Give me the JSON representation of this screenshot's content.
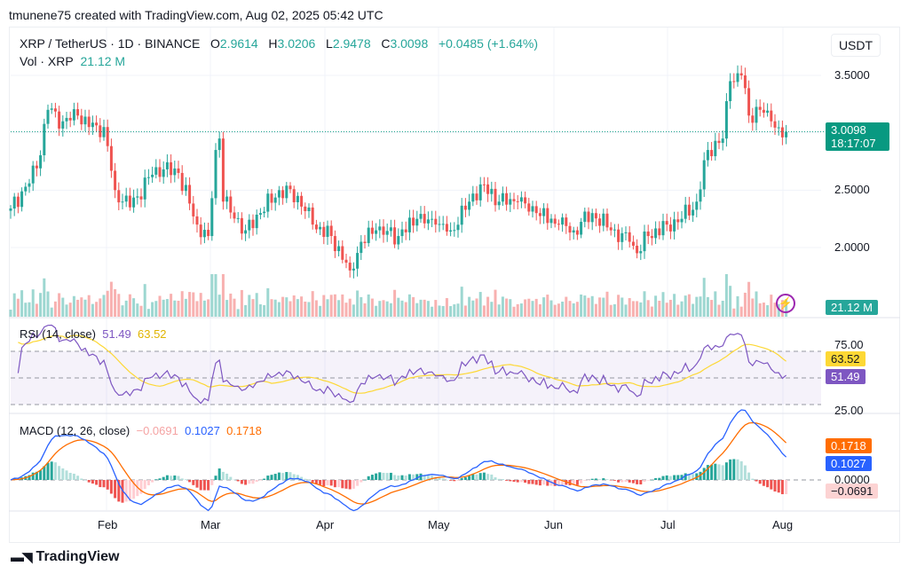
{
  "credit": "tmunene75 created with TradingView.com, Aug 02, 2025 05:42 UTC",
  "symbol": {
    "name": "XRP / TetherUS · 1D · BINANCE",
    "o_label": "O",
    "o": "2.9614",
    "h_label": "H",
    "h": "3.0206",
    "l_label": "L",
    "l": "2.9478",
    "c_label": "C",
    "c": "3.0098",
    "change": "+0.0485 (+1.64%)"
  },
  "volume": {
    "label": "Vol · XRP",
    "value": "21.12 M"
  },
  "currency": "USDT",
  "price_axis": [
    "3.5000",
    "2.5000",
    "2.0000"
  ],
  "last_price": {
    "price": "3.0098",
    "countdown": "18:17:07"
  },
  "volume_tag": "21.12 M",
  "rsi": {
    "label": "RSI (14, close)",
    "rsi": "51.49",
    "ma": "63.52",
    "axis": [
      "75.00",
      "25.00"
    ]
  },
  "macd": {
    "label": "MACD (12, 26, close)",
    "hist": "−0.0691",
    "macd": "0.1027",
    "signal": "0.1718",
    "axis": "0.0000"
  },
  "time_axis": [
    "Feb",
    "Mar",
    "Apr",
    "May",
    "Jun",
    "Jul",
    "Aug"
  ],
  "brand": "TradingView",
  "colors": {
    "up": "#26a69a",
    "down": "#ef5350",
    "rsi": "#7e57c2",
    "rsi_ma": "#fdd835",
    "macd": "#2962ff",
    "signal": "#ff6d00"
  },
  "chart_data": {
    "type": "candlestick",
    "title": "XRP / TetherUS · 1D · BINANCE",
    "start_date": "2025-01-06",
    "end_date": "2025-08-02",
    "ylim": [
      1.55,
      3.75
    ],
    "close_keypoints": [
      [
        "01-06",
        2.34
      ],
      [
        "01-10",
        2.53
      ],
      [
        "01-13",
        2.69
      ],
      [
        "01-16",
        3.2
      ],
      [
        "01-20",
        3.1
      ],
      [
        "01-24",
        3.15
      ],
      [
        "01-27",
        3.05
      ],
      [
        "01-31",
        3.05
      ],
      [
        "02-03",
        2.5
      ],
      [
        "02-07",
        2.35
      ],
      [
        "02-14",
        2.7
      ],
      [
        "02-20",
        2.65
      ],
      [
        "02-25",
        2.2
      ],
      [
        "02-28",
        2.1
      ],
      [
        "03-02",
        2.85
      ],
      [
        "03-03",
        2.95
      ],
      [
        "03-04",
        2.4
      ],
      [
        "03-10",
        2.15
      ],
      [
        "03-14",
        2.3
      ],
      [
        "03-19",
        2.5
      ],
      [
        "03-24",
        2.45
      ],
      [
        "03-28",
        2.2
      ],
      [
        "04-02",
        2.1
      ],
      [
        "04-07",
        1.8
      ],
      [
        "04-10",
        2.05
      ],
      [
        "04-14",
        2.15
      ],
      [
        "04-20",
        2.1
      ],
      [
        "04-25",
        2.25
      ],
      [
        "04-30",
        2.2
      ],
      [
        "05-04",
        2.15
      ],
      [
        "05-09",
        2.4
      ],
      [
        "05-12",
        2.55
      ],
      [
        "05-17",
        2.4
      ],
      [
        "05-22",
        2.4
      ],
      [
        "05-27",
        2.3
      ],
      [
        "06-02",
        2.2
      ],
      [
        "06-06",
        2.15
      ],
      [
        "06-11",
        2.3
      ],
      [
        "06-16",
        2.15
      ],
      [
        "06-21",
        2.05
      ],
      [
        "06-23",
        1.95
      ],
      [
        "06-26",
        2.1
      ],
      [
        "07-01",
        2.2
      ],
      [
        "07-05",
        2.25
      ],
      [
        "07-09",
        2.4
      ],
      [
        "07-12",
        2.85
      ],
      [
        "07-16",
        2.95
      ],
      [
        "07-18",
        3.45
      ],
      [
        "07-21",
        3.5
      ],
      [
        "07-23",
        3.15
      ],
      [
        "07-26",
        3.2
      ],
      [
        "07-29",
        3.1
      ],
      [
        "08-01",
        2.96
      ],
      [
        "08-02",
        3.0098
      ]
    ]
  }
}
